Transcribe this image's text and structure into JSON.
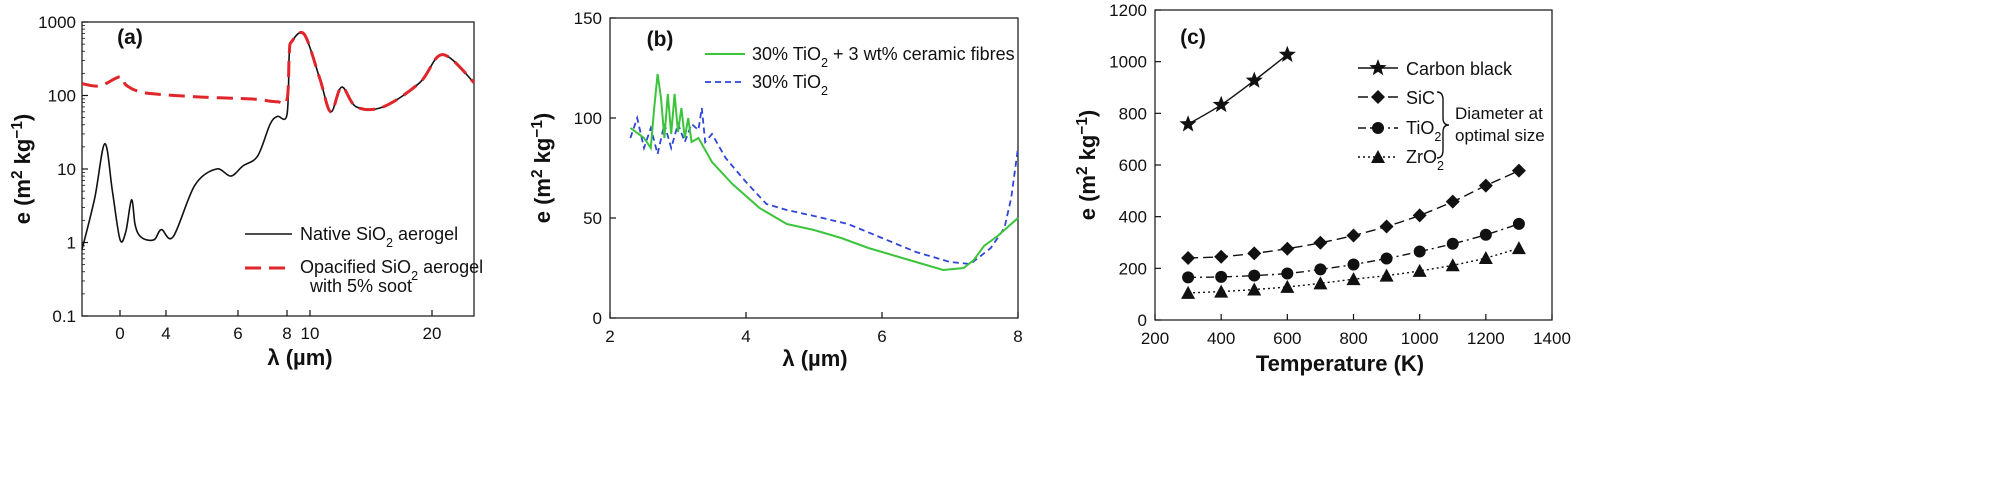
{
  "chart_data": [
    {
      "panel": "(a)",
      "type": "line",
      "xlabel": "λ (µm)",
      "ylabel": "e (m² kg⁻¹)",
      "yscale": "log",
      "ylim": [
        0.1,
        1000
      ],
      "yticks": [
        "0.1",
        "1",
        "10",
        "100",
        "1000"
      ],
      "xticks": [
        "0",
        "4",
        "6",
        "8",
        "10",
        "20"
      ],
      "grid": false,
      "legend_position": "bottom-right",
      "series": [
        {
          "name": "Native SiO₂ aerogel",
          "color": "#111111",
          "style": "solid",
          "x": [
            -1.5,
            -1.0,
            -0.6,
            -0.3,
            0.0,
            0.5,
            1.0,
            1.3,
            1.6,
            2.2,
            3.0,
            3.6,
            4.2,
            4.8,
            5.4,
            5.8,
            6.2,
            6.8,
            7.3,
            7.6,
            8.0,
            8.2,
            8.4,
            9.5,
            10.8,
            11.7,
            12.6,
            13.8,
            16.0,
            19.0,
            20.5,
            22.0
          ],
          "y": [
            0.8,
            4,
            22,
            5,
            1.1,
            1.4,
            3.8,
            1.8,
            1.3,
            1.1,
            1.1,
            1.5,
            1.2,
            6,
            10,
            8,
            11,
            15,
            40,
            52,
            55,
            380,
            540,
            680,
            170,
            60,
            130,
            70,
            70,
            150,
            360,
            150
          ]
        },
        {
          "name": "Opacified SiO₂ aerogel with 5% soot",
          "color": "#e0262b",
          "style": "dashed",
          "x": [
            -1.5,
            -0.8,
            0.0,
            0.5,
            1.5,
            3.0,
            5.0,
            6.5,
            7.6,
            8.0,
            8.2,
            8.4,
            9.5,
            10.8,
            11.7,
            12.6,
            13.8,
            16.0,
            19.0,
            20.5,
            22.0
          ],
          "y": [
            145,
            135,
            180,
            140,
            115,
            105,
            95,
            90,
            82,
            88,
            380,
            540,
            680,
            170,
            60,
            130,
            70,
            70,
            150,
            360,
            150
          ]
        }
      ],
      "annotations": [
        "with 5% soot"
      ]
    },
    {
      "panel": "(b)",
      "type": "line",
      "xlabel": "λ (µm)",
      "ylabel": "e (m² kg⁻¹)",
      "xlim": [
        2,
        8
      ],
      "ylim": [
        0,
        150
      ],
      "xticks": [
        "2",
        "4",
        "6",
        "8"
      ],
      "yticks": [
        "0",
        "50",
        "100",
        "150"
      ],
      "grid": false,
      "legend_position": "top-right",
      "series": [
        {
          "name": "30% TiO₂ + 3 wt% ceramic fibres",
          "color": "#3cc43c",
          "style": "solid",
          "x": [
            2.3,
            2.5,
            2.6,
            2.65,
            2.7,
            2.75,
            2.8,
            2.85,
            2.9,
            2.95,
            3.0,
            3.05,
            3.1,
            3.15,
            3.2,
            3.3,
            3.5,
            3.8,
            4.2,
            4.6,
            5.0,
            5.4,
            5.8,
            6.2,
            6.6,
            6.9,
            7.2,
            7.35,
            7.5,
            7.7,
            8.0
          ],
          "y": [
            95,
            90,
            85,
            105,
            122,
            110,
            90,
            112,
            92,
            112,
            93,
            105,
            90,
            100,
            88,
            90,
            78,
            67,
            55,
            47,
            44,
            40,
            35,
            31,
            27,
            24,
            25,
            29,
            36,
            41,
            50
          ]
        },
        {
          "name": "30% TiO₂",
          "color": "#2f45d6",
          "style": "dashed",
          "x": [
            2.3,
            2.4,
            2.5,
            2.6,
            2.7,
            2.8,
            2.9,
            3.0,
            3.1,
            3.2,
            3.3,
            3.35,
            3.4,
            3.5,
            3.7,
            4.0,
            4.3,
            4.6,
            5.0,
            5.5,
            6.0,
            6.5,
            7.0,
            7.3,
            7.6,
            7.8,
            7.9,
            8.0
          ],
          "y": [
            90,
            100,
            85,
            95,
            82,
            97,
            85,
            97,
            88,
            97,
            94,
            105,
            88,
            92,
            80,
            68,
            57,
            54,
            51,
            47,
            40,
            33,
            28,
            27,
            35,
            45,
            60,
            85
          ]
        }
      ]
    },
    {
      "panel": "(c)",
      "type": "line",
      "xlabel": "Temperature (K)",
      "ylabel": "e (m² kg⁻¹)",
      "xlim": [
        200,
        1400
      ],
      "ylim": [
        0,
        1200
      ],
      "xticks": [
        "200",
        "400",
        "600",
        "800",
        "1000",
        "1200",
        "1400"
      ],
      "yticks": [
        "0",
        "200",
        "400",
        "600",
        "800",
        "1000",
        "1200"
      ],
      "grid": false,
      "legend_position": "top-right",
      "annotations": [
        "Diameter at",
        "optimal size"
      ],
      "series": [
        {
          "name": "Carbon black",
          "marker": "star",
          "style": "solid",
          "x": [
            300,
            400,
            500,
            600
          ],
          "y": [
            758,
            833,
            927,
            1027
          ]
        },
        {
          "name": "SiC",
          "marker": "diamond",
          "style": "dashed",
          "x": [
            300,
            400,
            500,
            600,
            700,
            800,
            900,
            1000,
            1100,
            1200,
            1300
          ],
          "y": [
            240,
            245,
            258,
            276,
            299,
            327,
            362,
            405,
            458,
            520,
            578
          ]
        },
        {
          "name": "TiO₂",
          "marker": "circle",
          "style": "dashdot",
          "x": [
            300,
            400,
            500,
            600,
            700,
            800,
            900,
            1000,
            1100,
            1200,
            1300
          ],
          "y": [
            165,
            167,
            172,
            180,
            196,
            215,
            238,
            265,
            295,
            330,
            372
          ]
        },
        {
          "name": "ZrO₂",
          "marker": "triangle",
          "style": "dotted",
          "x": [
            300,
            400,
            500,
            600,
            700,
            800,
            900,
            1000,
            1100,
            1200,
            1300
          ],
          "y": [
            105,
            110,
            118,
            128,
            142,
            158,
            172,
            190,
            212,
            240,
            278
          ]
        }
      ]
    }
  ]
}
